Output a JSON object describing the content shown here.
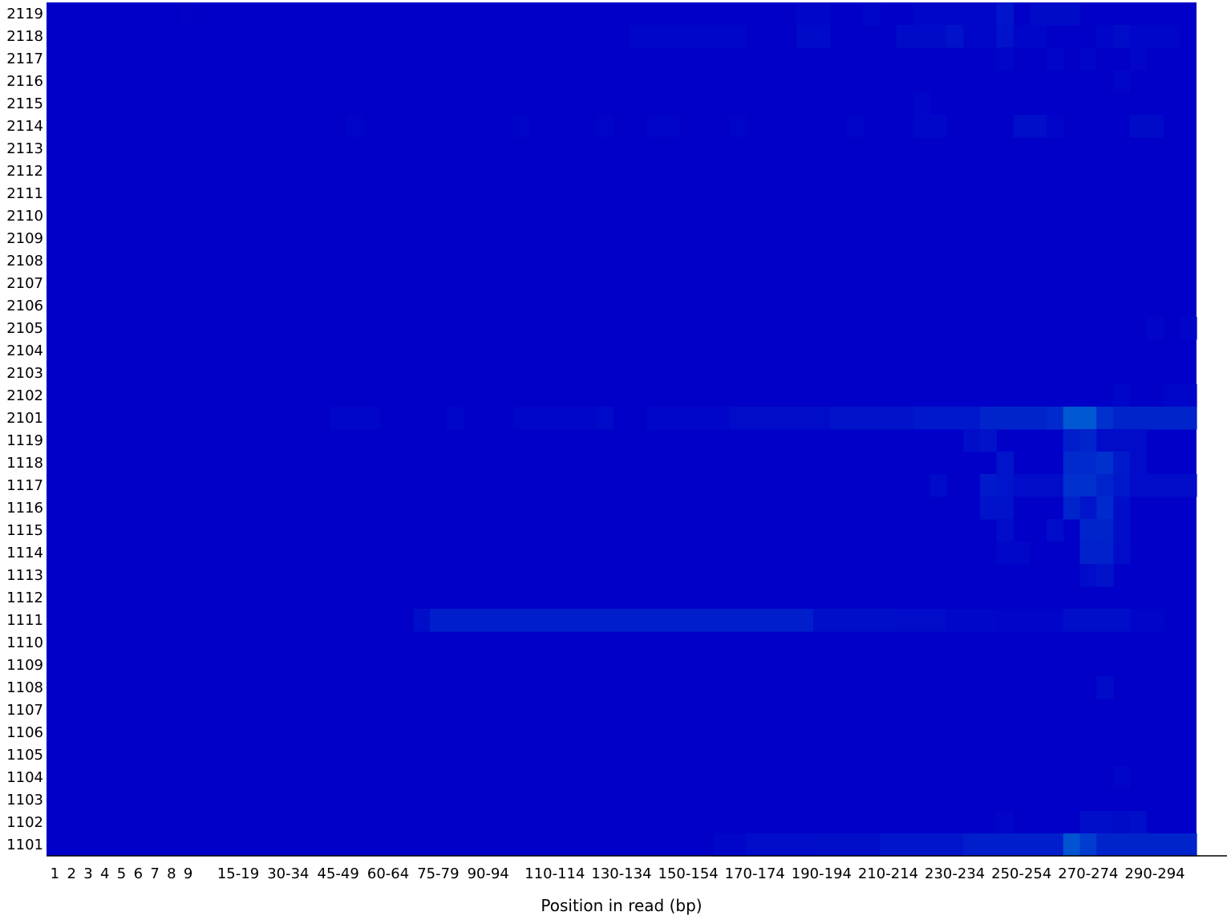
{
  "chart_data": {
    "type": "heatmap",
    "title": "",
    "xlabel": "Position in read (bp)",
    "ylabel": "",
    "y_labels": [
      "2119",
      "2118",
      "2117",
      "2116",
      "2115",
      "2114",
      "2113",
      "2112",
      "2111",
      "2110",
      "2109",
      "2108",
      "2107",
      "2106",
      "2105",
      "2104",
      "2103",
      "2102",
      "2101",
      "1119",
      "1118",
      "1117",
      "1116",
      "1115",
      "1114",
      "1113",
      "1112",
      "1111",
      "1110",
      "1109",
      "1108",
      "1107",
      "1106",
      "1105",
      "1104",
      "1103",
      "1102",
      "1101"
    ],
    "x_tick_labels": [
      "1",
      "2",
      "3",
      "4",
      "5",
      "6",
      "7",
      "8",
      "9",
      "15-19",
      "30-34",
      "45-49",
      "60-64",
      "75-79",
      "90-94",
      "110-114",
      "130-134",
      "150-154",
      "170-174",
      "190-194",
      "210-214",
      "230-234",
      "250-254",
      "270-274",
      "290-294"
    ],
    "x_tick_positions": [
      1,
      2,
      3,
      4,
      5,
      6,
      7,
      8,
      9,
      12,
      15,
      18,
      21,
      24,
      27,
      31,
      35,
      39,
      43,
      47,
      51,
      55,
      59,
      63,
      67
    ],
    "n_columns": 69,
    "colorscale": [
      "#0000c8",
      "#0077d6"
    ],
    "value_range": [
      0,
      1
    ],
    "base_value": 0,
    "hotspots": [
      {
        "row": "2119",
        "cols": [
          9
        ],
        "value": 0.02
      },
      {
        "row": "2119",
        "cols": [
          46,
          47,
          50,
          53,
          54,
          55,
          56,
          57
        ],
        "value": 0.05
      },
      {
        "row": "2119",
        "cols": [
          58
        ],
        "value": 0.18
      },
      {
        "row": "2119",
        "cols": [
          60,
          61,
          62
        ],
        "value": 0.08
      },
      {
        "row": "2118",
        "cols": [
          36,
          37,
          38,
          39,
          40,
          41,
          42
        ],
        "value": 0.05
      },
      {
        "row": "2118",
        "cols": [
          46,
          47
        ],
        "value": 0.08
      },
      {
        "row": "2118",
        "cols": [
          52,
          53,
          54
        ],
        "value": 0.09
      },
      {
        "row": "2118",
        "cols": [
          55
        ],
        "value": 0.15
      },
      {
        "row": "2118",
        "cols": [
          56,
          57
        ],
        "value": 0.05
      },
      {
        "row": "2118",
        "cols": [
          58
        ],
        "value": 0.16
      },
      {
        "row": "2118",
        "cols": [
          59,
          60,
          64,
          66,
          67,
          68
        ],
        "value": 0.05
      },
      {
        "row": "2118",
        "cols": [
          65
        ],
        "value": 0.1
      },
      {
        "row": "2117",
        "cols": [
          58,
          61,
          63,
          66
        ],
        "value": 0.04
      },
      {
        "row": "2116",
        "cols": [
          65
        ],
        "value": 0.04
      },
      {
        "row": "2115",
        "cols": [
          53
        ],
        "value": 0.04
      },
      {
        "row": "2114",
        "cols": [
          19,
          29,
          34,
          37,
          38,
          42,
          49
        ],
        "value": 0.03
      },
      {
        "row": "2114",
        "cols": [
          53,
          54
        ],
        "value": 0.06
      },
      {
        "row": "2114",
        "cols": [
          59,
          60
        ],
        "value": 0.12
      },
      {
        "row": "2114",
        "cols": [
          61
        ],
        "value": 0.04
      },
      {
        "row": "2114",
        "cols": [
          66,
          67
        ],
        "value": 0.08
      },
      {
        "row": "2105",
        "cols": [
          67,
          69
        ],
        "value": 0.04
      },
      {
        "row": "2102",
        "cols": [
          65,
          68,
          69
        ],
        "value": 0.05
      },
      {
        "row": "2101",
        "cols": [
          18,
          19,
          20,
          25,
          29,
          30,
          31,
          32,
          33,
          37,
          38,
          39,
          40,
          41
        ],
        "value": 0.05
      },
      {
        "row": "2101",
        "cols": [
          34
        ],
        "value": 0.08
      },
      {
        "row": "2101",
        "cols": [
          42,
          43,
          44,
          45,
          46,
          47
        ],
        "value": 0.1
      },
      {
        "row": "2101",
        "cols": [
          48,
          49,
          50,
          51,
          52
        ],
        "value": 0.15
      },
      {
        "row": "2101",
        "cols": [
          53,
          54,
          55,
          56
        ],
        "value": 0.2
      },
      {
        "row": "2101",
        "cols": [
          57,
          58,
          59,
          60
        ],
        "value": 0.3
      },
      {
        "row": "2101",
        "cols": [
          61
        ],
        "value": 0.35
      },
      {
        "row": "2101",
        "cols": [
          62,
          63
        ],
        "value": 0.75
      },
      {
        "row": "2101",
        "cols": [
          64
        ],
        "value": 0.4
      },
      {
        "row": "2101",
        "cols": [
          65,
          66,
          67,
          68,
          69
        ],
        "value": 0.3
      },
      {
        "row": "1119",
        "cols": [
          56
        ],
        "value": 0.12
      },
      {
        "row": "1119",
        "cols": [
          57
        ],
        "value": 0.15
      },
      {
        "row": "1119",
        "cols": [
          62
        ],
        "value": 0.25
      },
      {
        "row": "1119",
        "cols": [
          63
        ],
        "value": 0.3
      },
      {
        "row": "1119",
        "cols": [
          64,
          65,
          66
        ],
        "value": 0.1
      },
      {
        "row": "1118",
        "cols": [
          58
        ],
        "value": 0.18
      },
      {
        "row": "1118",
        "cols": [
          62,
          63
        ],
        "value": 0.35
      },
      {
        "row": "1118",
        "cols": [
          64
        ],
        "value": 0.4
      },
      {
        "row": "1118",
        "cols": [
          65
        ],
        "value": 0.22
      },
      {
        "row": "1118",
        "cols": [
          66
        ],
        "value": 0.1
      },
      {
        "row": "1117",
        "cols": [
          54
        ],
        "value": 0.08
      },
      {
        "row": "1117",
        "cols": [
          57
        ],
        "value": 0.22
      },
      {
        "row": "1117",
        "cols": [
          58
        ],
        "value": 0.18
      },
      {
        "row": "1117",
        "cols": [
          59,
          60,
          61,
          66,
          67,
          68,
          69
        ],
        "value": 0.1
      },
      {
        "row": "1117",
        "cols": [
          62,
          63
        ],
        "value": 0.4
      },
      {
        "row": "1117",
        "cols": [
          64
        ],
        "value": 0.3
      },
      {
        "row": "1117",
        "cols": [
          65
        ],
        "value": 0.2
      },
      {
        "row": "1116",
        "cols": [
          57,
          58
        ],
        "value": 0.15
      },
      {
        "row": "1116",
        "cols": [
          62
        ],
        "value": 0.3
      },
      {
        "row": "1116",
        "cols": [
          63
        ],
        "value": 0.18
      },
      {
        "row": "1116",
        "cols": [
          64
        ],
        "value": 0.35
      },
      {
        "row": "1116",
        "cols": [
          65
        ],
        "value": 0.12
      },
      {
        "row": "1115",
        "cols": [
          58,
          61
        ],
        "value": 0.1
      },
      {
        "row": "1115",
        "cols": [
          63,
          64
        ],
        "value": 0.3
      },
      {
        "row": "1115",
        "cols": [
          65
        ],
        "value": 0.12
      },
      {
        "row": "1114",
        "cols": [
          58,
          59
        ],
        "value": 0.06
      },
      {
        "row": "1114",
        "cols": [
          63,
          64
        ],
        "value": 0.28
      },
      {
        "row": "1114",
        "cols": [
          65
        ],
        "value": 0.1
      },
      {
        "row": "1113",
        "cols": [
          63
        ],
        "value": 0.1
      },
      {
        "row": "1113",
        "cols": [
          64
        ],
        "value": 0.15
      },
      {
        "row": "1111",
        "cols": [
          23,
          47,
          48,
          49,
          50,
          51
        ],
        "value": 0.12
      },
      {
        "row": "1111",
        "cols": [
          24,
          25,
          26,
          27,
          28,
          29,
          30,
          31,
          32,
          33,
          34,
          35,
          36,
          37,
          38,
          39,
          40,
          41,
          42,
          43,
          44,
          45,
          46
        ],
        "value": 0.25
      },
      {
        "row": "1111",
        "cols": [
          52,
          53,
          54
        ],
        "value": 0.1
      },
      {
        "row": "1111",
        "cols": [
          55,
          56,
          57
        ],
        "value": 0.06
      },
      {
        "row": "1111",
        "cols": [
          58,
          59,
          60,
          61,
          66,
          67
        ],
        "value": 0.04
      },
      {
        "row": "1111",
        "cols": [
          62,
          63,
          64,
          65
        ],
        "value": 0.12
      },
      {
        "row": "1108",
        "cols": [
          64
        ],
        "value": 0.08
      },
      {
        "row": "1104",
        "cols": [
          65
        ],
        "value": 0.04
      },
      {
        "row": "1102",
        "cols": [
          58
        ],
        "value": 0.04
      },
      {
        "row": "1102",
        "cols": [
          63,
          64,
          66
        ],
        "value": 0.12
      },
      {
        "row": "1102",
        "cols": [
          65
        ],
        "value": 0.08
      },
      {
        "row": "1101",
        "cols": [
          41,
          42
        ],
        "value": 0.05
      },
      {
        "row": "1101",
        "cols": [
          43,
          44,
          45,
          46
        ],
        "value": 0.1
      },
      {
        "row": "1101",
        "cols": [
          47,
          48,
          49,
          50
        ],
        "value": 0.12
      },
      {
        "row": "1101",
        "cols": [
          51,
          52,
          53,
          54,
          55
        ],
        "value": 0.18
      },
      {
        "row": "1101",
        "cols": [
          56,
          57,
          58,
          59,
          60,
          61
        ],
        "value": 0.25
      },
      {
        "row": "1101",
        "cols": [
          62
        ],
        "value": 0.7
      },
      {
        "row": "1101",
        "cols": [
          63
        ],
        "value": 0.5
      },
      {
        "row": "1101",
        "cols": [
          64,
          65,
          66,
          67,
          68,
          69
        ],
        "value": 0.3
      }
    ]
  }
}
